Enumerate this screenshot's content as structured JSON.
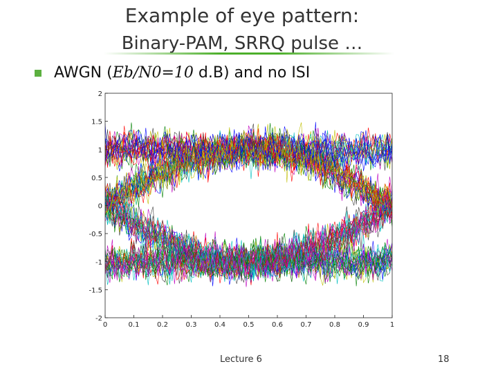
{
  "slide": {
    "title": "Example of eye pattern:",
    "subtitle": "Binary-PAM, SRRQ pulse …",
    "bullet": {
      "prefix": "AWGN (",
      "math": "Eb/N0=10",
      "suffix": " d.B) and no ISI"
    },
    "figure": {
      "xticks": [
        0,
        0.1,
        0.2,
        0.3,
        0.4,
        0.5,
        0.6,
        0.7,
        0.8,
        0.9,
        1
      ],
      "yticks": [
        2,
        1.5,
        1,
        0.5,
        0,
        -0.5,
        -1,
        -1.5,
        -2
      ]
    },
    "footer": {
      "label": "Lecture 6",
      "page": "18"
    }
  }
}
